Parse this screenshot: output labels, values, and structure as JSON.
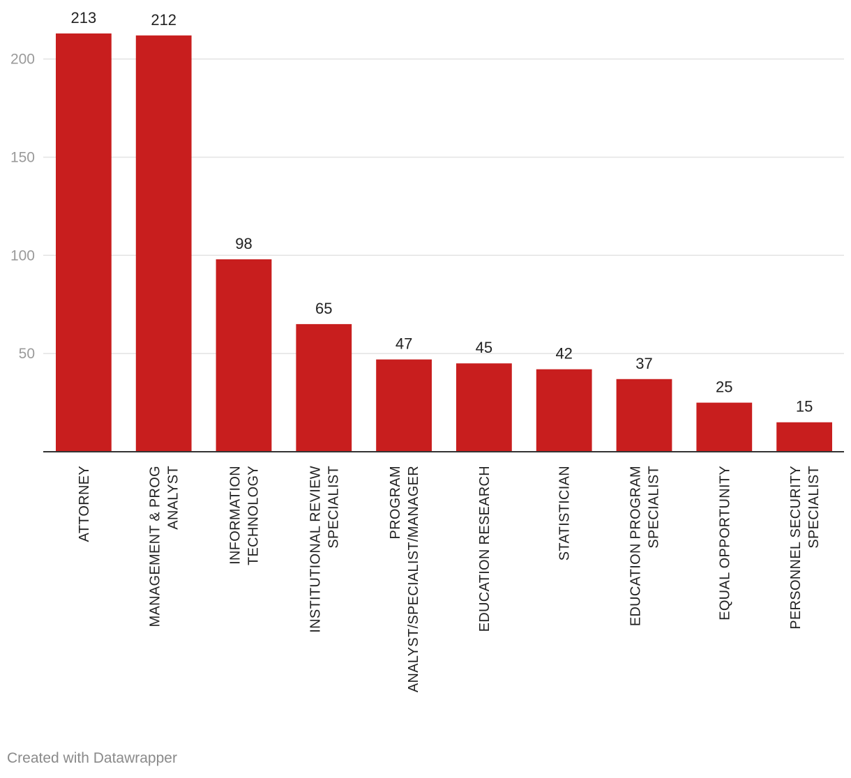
{
  "chart_data": {
    "type": "bar",
    "categories": [
      [
        "ATTORNEY"
      ],
      [
        "MANAGEMENT & PROG",
        "ANALYST"
      ],
      [
        "INFORMATION",
        "TECHNOLOGY"
      ],
      [
        "INSTITUTIONAL REVIEW",
        "SPECIALIST"
      ],
      [
        "PROGRAM",
        "ANALYST/SPECIALIST/MANAGER"
      ],
      [
        "EDUCATION RESEARCH"
      ],
      [
        "STATISTICIAN"
      ],
      [
        "EDUCATION PROGRAM",
        "SPECIALIST"
      ],
      [
        "EQUAL OPPORTUNITY"
      ],
      [
        "PERSONNEL SECURITY",
        "SPECIALIST"
      ]
    ],
    "values": [
      213,
      212,
      98,
      65,
      47,
      45,
      42,
      37,
      25,
      15
    ],
    "ylim": [
      0,
      213
    ],
    "yticks": [
      50,
      100,
      150,
      200
    ],
    "grid": true,
    "bar_color": "#c81e1e"
  },
  "footer": {
    "credit": "Created with Datawrapper"
  }
}
